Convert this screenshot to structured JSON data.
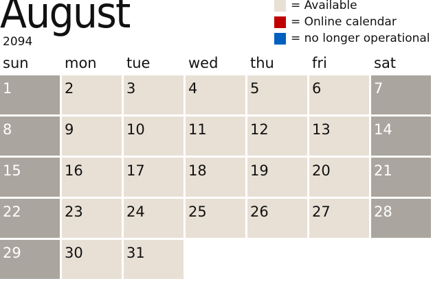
{
  "header": {
    "month": "August",
    "year": "2094"
  },
  "legend": [
    {
      "color": "#e8e0d5",
      "label": "= Available"
    },
    {
      "color": "#c00000",
      "label": "= Online calendar"
    },
    {
      "color": "#0060c0",
      "label": "= no longer operational"
    }
  ],
  "weekdays": [
    "sun",
    "mon",
    "tue",
    "wed",
    "thu",
    "fri",
    "sat"
  ],
  "days": [
    "1",
    "2",
    "3",
    "4",
    "5",
    "6",
    "7",
    "8",
    "9",
    "10",
    "11",
    "12",
    "13",
    "14",
    "15",
    "16",
    "17",
    "18",
    "19",
    "20",
    "21",
    "22",
    "23",
    "24",
    "25",
    "26",
    "27",
    "28",
    "29",
    "30",
    "31"
  ],
  "colors": {
    "weekday": "#e8e0d5",
    "weekend": "#aaa59e"
  }
}
